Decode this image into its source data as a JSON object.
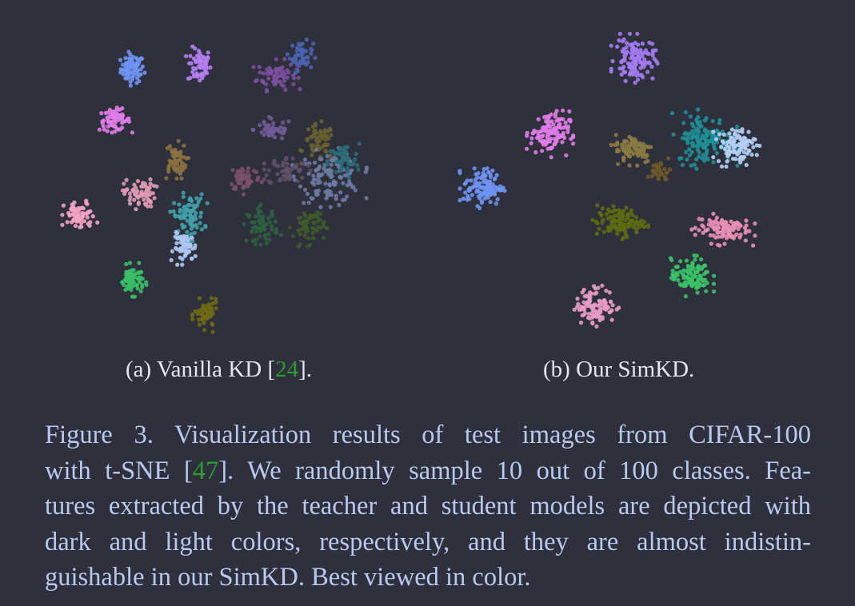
{
  "subcaptions": {
    "a": {
      "prefix": "(a) Vanilla KD [",
      "cite": "24",
      "suffix": "]."
    },
    "b": {
      "text": "(b) Our SimKD."
    }
  },
  "caption": {
    "line1": "Figure 3.  Visualization results of test images from CIFAR-100",
    "line2_prefix": "with t-SNE [",
    "line2_cite": "47",
    "line2_suffix": "]. We randomly sample 10 out of 100 classes. Fea-",
    "line3": "tures extracted by the teacher and student models are depicted with",
    "line4": "dark and light colors, respectively, and they are almost indistin-",
    "line5": "guishable in our SimKD. Best viewed in color."
  },
  "colors": {
    "background": "#2e313c",
    "citation": "#2f9a35",
    "caption_text": "#b8c9ef"
  },
  "chart_data": [
    {
      "type": "scatter",
      "title": "(a) Vanilla KD [24].",
      "xlim": [
        0,
        100
      ],
      "ylim": [
        0,
        100
      ],
      "clusters": [
        {
          "x": 24,
          "y": 86,
          "rx": 3,
          "ry": 4,
          "color": "#6f93f2",
          "n": 80
        },
        {
          "x": 43,
          "y": 87,
          "rx": 3,
          "ry": 5,
          "color": "#b47ef2",
          "n": 70
        },
        {
          "x": 65,
          "y": 84,
          "rx": 5,
          "ry": 4,
          "color": "#7a4f9c",
          "n": 70
        },
        {
          "x": 72,
          "y": 90,
          "rx": 3,
          "ry": 4,
          "color": "#4a64b0",
          "n": 50
        },
        {
          "x": 19,
          "y": 70,
          "rx": 4,
          "ry": 3,
          "color": "#e07ce8",
          "n": 70
        },
        {
          "x": 64,
          "y": 67,
          "rx": 5,
          "ry": 3,
          "color": "#6e5a95",
          "n": 50
        },
        {
          "x": 77,
          "y": 63,
          "rx": 4,
          "ry": 5,
          "color": "#67602e",
          "n": 60
        },
        {
          "x": 80,
          "y": 52,
          "rx": 8,
          "ry": 7,
          "color": "#6c7ba1",
          "n": 120
        },
        {
          "x": 84,
          "y": 57,
          "rx": 4,
          "ry": 5,
          "color": "#2a6e7a",
          "n": 50
        },
        {
          "x": 56,
          "y": 52,
          "rx": 4,
          "ry": 4,
          "color": "#7a5068",
          "n": 50
        },
        {
          "x": 68,
          "y": 54,
          "rx": 5,
          "ry": 4,
          "color": "#60506a",
          "n": 50
        },
        {
          "x": 36,
          "y": 57,
          "rx": 3,
          "ry": 5,
          "color": "#8b7040",
          "n": 60
        },
        {
          "x": 26,
          "y": 47,
          "rx": 4,
          "ry": 4,
          "color": "#e09ab4",
          "n": 70
        },
        {
          "x": 9,
          "y": 40,
          "rx": 4,
          "ry": 4,
          "color": "#f3a2c2",
          "n": 70
        },
        {
          "x": 40,
          "y": 40,
          "rx": 4,
          "ry": 6,
          "color": "#3fa0a8",
          "n": 90
        },
        {
          "x": 39,
          "y": 30,
          "rx": 3,
          "ry": 4,
          "color": "#aec8f5",
          "n": 60
        },
        {
          "x": 61,
          "y": 37,
          "rx": 4,
          "ry": 5,
          "color": "#2e6140",
          "n": 60
        },
        {
          "x": 74,
          "y": 37,
          "rx": 4,
          "ry": 5,
          "color": "#3e5a2a",
          "n": 60
        },
        {
          "x": 24,
          "y": 20,
          "rx": 3,
          "ry": 4,
          "color": "#39c067",
          "n": 70
        },
        {
          "x": 45,
          "y": 9,
          "rx": 3,
          "ry": 4,
          "color": "#6e6a12",
          "n": 60
        }
      ]
    },
    {
      "type": "scatter",
      "title": "(b) Our SimKD.",
      "xlim": [
        0,
        100
      ],
      "ylim": [
        0,
        100
      ],
      "clusters": [
        {
          "x": 53,
          "y": 89,
          "rx": 5,
          "ry": 6,
          "color": "#a47cf2",
          "n": 120
        },
        {
          "x": 29,
          "y": 66,
          "rx": 5,
          "ry": 6,
          "color": "#e07ce8",
          "n": 120
        },
        {
          "x": 10,
          "y": 49,
          "rx": 5,
          "ry": 5,
          "color": "#6f93f2",
          "n": 120
        },
        {
          "x": 53,
          "y": 61,
          "rx": 5,
          "ry": 4,
          "color": "#8a7a42",
          "n": 90
        },
        {
          "x": 73,
          "y": 64,
          "rx": 7,
          "ry": 7,
          "color": "#1e8f95",
          "n": 140
        },
        {
          "x": 82,
          "y": 62,
          "rx": 5,
          "ry": 5,
          "color": "#b2cff5",
          "n": 100
        },
        {
          "x": 60,
          "y": 54,
          "rx": 3,
          "ry": 3,
          "color": "#6b5a2a",
          "n": 30
        },
        {
          "x": 49,
          "y": 38,
          "rx": 6,
          "ry": 4,
          "color": "#5e6a10",
          "n": 110
        },
        {
          "x": 78,
          "y": 36,
          "rx": 7,
          "ry": 4,
          "color": "#e88fb2",
          "n": 110
        },
        {
          "x": 69,
          "y": 21,
          "rx": 5,
          "ry": 5,
          "color": "#3ac266",
          "n": 110
        },
        {
          "x": 42,
          "y": 12,
          "rx": 5,
          "ry": 5,
          "color": "#e89bc2",
          "n": 110
        }
      ]
    }
  ]
}
